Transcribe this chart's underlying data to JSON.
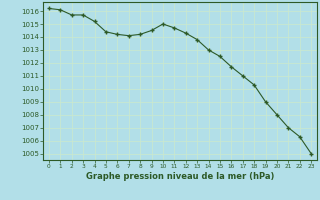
{
  "x": [
    0,
    1,
    2,
    3,
    4,
    5,
    6,
    7,
    8,
    9,
    10,
    11,
    12,
    13,
    14,
    15,
    16,
    17,
    18,
    19,
    20,
    21,
    22,
    23
  ],
  "y": [
    1016.2,
    1016.1,
    1015.7,
    1015.7,
    1015.2,
    1014.4,
    1014.2,
    1014.1,
    1014.2,
    1014.5,
    1015.0,
    1014.7,
    1014.3,
    1013.8,
    1013.0,
    1012.5,
    1011.7,
    1011.0,
    1010.3,
    1009.0,
    1008.0,
    1007.0,
    1006.3,
    1005.0
  ],
  "line_color": "#2d5a27",
  "marker": "+",
  "background_color": "#b2dfe8",
  "grid_color": "#c8e8d0",
  "xlabel": "Graphe pression niveau de la mer (hPa)",
  "xlabel_color": "#2d5a27",
  "tick_color": "#2d5a27",
  "ylim": [
    1004.5,
    1016.7
  ],
  "xlim": [
    -0.5,
    23.5
  ],
  "yticks": [
    1005,
    1006,
    1007,
    1008,
    1009,
    1010,
    1011,
    1012,
    1013,
    1014,
    1015,
    1016
  ],
  "xticks": [
    0,
    1,
    2,
    3,
    4,
    5,
    6,
    7,
    8,
    9,
    10,
    11,
    12,
    13,
    14,
    15,
    16,
    17,
    18,
    19,
    20,
    21,
    22,
    23
  ],
  "xtick_labels": [
    "0",
    "1",
    "2",
    "3",
    "4",
    "5",
    "6",
    "7",
    "8",
    "9",
    "10",
    "11",
    "12",
    "13",
    "14",
    "15",
    "16",
    "17",
    "18",
    "19",
    "20",
    "21",
    "22",
    "23"
  ]
}
